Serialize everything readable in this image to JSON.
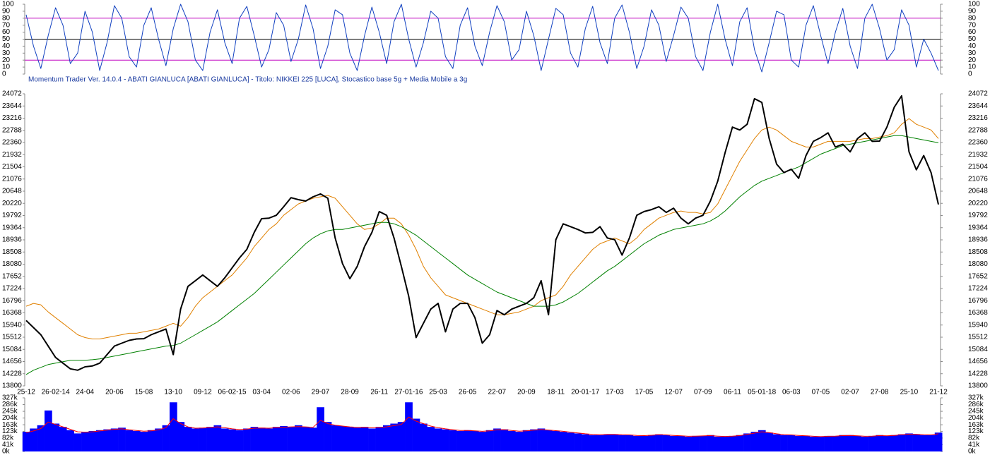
{
  "caption": "Momentum Trader   Ver. 14.0.4  -  ABATI GIANLUCA  [ABATI GIANLUCA] - Titolo: NIKKEI 225  [LUCA],    Stocastico base 5g + Media Mobile a 3g",
  "chart_data": [
    {
      "type": "line",
      "ylim": [
        0,
        100
      ],
      "yticks": [
        0,
        10,
        20,
        30,
        40,
        50,
        60,
        70,
        80,
        90,
        100
      ],
      "reference_lines": [
        {
          "value": 20,
          "color": "#c000c0"
        },
        {
          "value": 50,
          "color": "#000000"
        },
        {
          "value": 80,
          "color": "#c000c0"
        }
      ],
      "series": [
        {
          "color": "#1040c0",
          "values": [
            85,
            40,
            8,
            55,
            95,
            70,
            15,
            30,
            90,
            60,
            5,
            45,
            98,
            80,
            25,
            10,
            70,
            95,
            50,
            12,
            65,
            100,
            75,
            20,
            5,
            60,
            92,
            45,
            15,
            80,
            97,
            55,
            10,
            35,
            88,
            70,
            18,
            50,
            99,
            65,
            8,
            40,
            92,
            85,
            30,
            5,
            55,
            96,
            60,
            15,
            75,
            100,
            50,
            10,
            45,
            90,
            80,
            25,
            8,
            70,
            95,
            40,
            12,
            60,
            98,
            75,
            20,
            35,
            90,
            55,
            5,
            50,
            94,
            85,
            30,
            10,
            65,
            97,
            45,
            15,
            80,
            99,
            60,
            8,
            40,
            92,
            70,
            18,
            55,
            96,
            80,
            25,
            5,
            60,
            100,
            50,
            12,
            75,
            95,
            35,
            3,
            45,
            90,
            85,
            20,
            10,
            70,
            98,
            55,
            15,
            60,
            94,
            40,
            8,
            80,
            100,
            65,
            20,
            35,
            92,
            70,
            10,
            50,
            30,
            5
          ]
        }
      ]
    },
    {
      "type": "line",
      "ylim": [
        13800,
        24072
      ],
      "yticks": [
        13800,
        14228,
        14656,
        15084,
        15512,
        15940,
        16368,
        16796,
        17224,
        17652,
        18080,
        18508,
        18936,
        19364,
        19792,
        20220,
        20648,
        21076,
        21504,
        21932,
        22360,
        22788,
        23216,
        23644,
        24072
      ],
      "year_label_color": "#ff0000",
      "categories": [
        "25-12",
        null,
        null,
        null,
        "26-02-14",
        null,
        null,
        null,
        "24-04",
        null,
        null,
        null,
        "20-06",
        null,
        null,
        null,
        "15-08",
        null,
        null,
        null,
        "13-10",
        null,
        null,
        null,
        "09-12",
        null,
        null,
        null,
        "06-02-15",
        null,
        null,
        null,
        "03-04",
        null,
        null,
        null,
        "02-06",
        null,
        null,
        null,
        "29-07",
        null,
        null,
        null,
        "28-09",
        null,
        null,
        null,
        "26-11",
        null,
        null,
        null,
        "27-01-16",
        null,
        null,
        null,
        "25-03",
        null,
        null,
        null,
        "26-05",
        null,
        null,
        null,
        "22-07",
        null,
        null,
        null,
        "20-09",
        null,
        null,
        null,
        "18-11",
        null,
        null,
        null,
        "20-01-17",
        null,
        null,
        null,
        "17-03",
        null,
        null,
        null,
        "17-05",
        null,
        null,
        null,
        "12-07",
        null,
        null,
        null,
        "07-09",
        null,
        null,
        null,
        "06-11",
        null,
        null,
        null,
        "05-01-18",
        null,
        null,
        null,
        "06-03",
        null,
        null,
        null,
        "07-05",
        null,
        null,
        null,
        "02-07",
        null,
        null,
        null,
        "27-08",
        null,
        null,
        null,
        "25-10",
        null,
        null,
        null,
        "21-12"
      ],
      "series": [
        {
          "color": "#e08000",
          "width": 1,
          "values": [
            16600,
            16700,
            16650,
            16400,
            16200,
            16000,
            15800,
            15600,
            15500,
            15450,
            15450,
            15500,
            15550,
            15600,
            15650,
            15650,
            15700,
            15750,
            15800,
            15900,
            16000,
            15900,
            16200,
            16600,
            16900,
            17100,
            17300,
            17500,
            17700,
            18000,
            18300,
            18700,
            19000,
            19300,
            19500,
            19800,
            20000,
            20200,
            20300,
            20400,
            20450,
            20500,
            20400,
            20100,
            19800,
            19500,
            19300,
            19350,
            19500,
            19700,
            19700,
            19500,
            19100,
            18600,
            18000,
            17600,
            17300,
            17000,
            16900,
            16800,
            16700,
            16600,
            16500,
            16400,
            16300,
            16300,
            16350,
            16400,
            16500,
            16600,
            16800,
            16900,
            17000,
            17300,
            17700,
            18000,
            18300,
            18600,
            18800,
            18900,
            19000,
            18900,
            18800,
            19000,
            19300,
            19500,
            19700,
            19800,
            19900,
            19950,
            19900,
            19900,
            19850,
            19900,
            20200,
            20700,
            21200,
            21700,
            22100,
            22500,
            22800,
            22900,
            22800,
            22600,
            22400,
            22300,
            22200,
            22200,
            22300,
            22400,
            22400,
            22400,
            22400,
            22450,
            22500,
            22500,
            22550,
            22600,
            22700,
            23000,
            23200,
            23000,
            22900,
            22800,
            22500
          ]
        },
        {
          "color": "#008000",
          "width": 1,
          "values": [
            14200,
            14350,
            14450,
            14550,
            14600,
            14650,
            14700,
            14700,
            14700,
            14720,
            14750,
            14800,
            14850,
            14900,
            14950,
            15000,
            15050,
            15100,
            15150,
            15200,
            15220,
            15300,
            15450,
            15600,
            15750,
            15900,
            16050,
            16250,
            16450,
            16650,
            16850,
            17050,
            17300,
            17550,
            17800,
            18050,
            18300,
            18550,
            18800,
            19000,
            19150,
            19250,
            19300,
            19300,
            19350,
            19400,
            19450,
            19500,
            19550,
            19550,
            19500,
            19400,
            19250,
            19100,
            18900,
            18700,
            18500,
            18300,
            18100,
            17900,
            17700,
            17550,
            17400,
            17250,
            17100,
            17000,
            16900,
            16800,
            16700,
            16600,
            16600,
            16600,
            16650,
            16750,
            16900,
            17050,
            17250,
            17450,
            17650,
            17850,
            18000,
            18200,
            18400,
            18600,
            18800,
            18950,
            19100,
            19200,
            19300,
            19350,
            19400,
            19450,
            19500,
            19600,
            19750,
            19950,
            20200,
            20450,
            20650,
            20850,
            21000,
            21100,
            21200,
            21300,
            21400,
            21500,
            21650,
            21800,
            21950,
            22050,
            22150,
            22250,
            22300,
            22350,
            22400,
            22450,
            22500,
            22550,
            22600,
            22600,
            22550,
            22500,
            22450,
            22400,
            22350
          ]
        },
        {
          "color": "#000000",
          "width": 2,
          "values": [
            16100,
            15850,
            15600,
            15200,
            14800,
            14600,
            14400,
            14350,
            14470,
            14500,
            14600,
            14900,
            15200,
            15300,
            15400,
            15450,
            15460,
            15600,
            15700,
            15800,
            14900,
            16500,
            17300,
            17500,
            17700,
            17500,
            17300,
            17600,
            17950,
            18300,
            18600,
            19200,
            19680,
            19700,
            19800,
            20100,
            20420,
            20350,
            20300,
            20450,
            20550,
            20400,
            19000,
            18100,
            17570,
            18000,
            18700,
            19200,
            19930,
            19800,
            19000,
            18000,
            16950,
            15500,
            16000,
            16500,
            16700,
            15700,
            16500,
            16700,
            16700,
            16200,
            15300,
            15600,
            16450,
            16300,
            16500,
            16600,
            16700,
            16900,
            17500,
            16300,
            18940,
            19500,
            19400,
            19300,
            19180,
            19200,
            19400,
            19000,
            18940,
            18400,
            19000,
            19800,
            19930,
            20000,
            20100,
            19900,
            20050,
            19700,
            19500,
            19700,
            19800,
            20300,
            21000,
            22000,
            22900,
            22800,
            23000,
            23900,
            23770,
            22500,
            21600,
            21300,
            21420,
            21100,
            21900,
            22400,
            22530,
            22700,
            22200,
            22300,
            22030,
            22500,
            22700,
            22400,
            22410,
            22900,
            23600,
            24000,
            22030,
            21400,
            21900,
            21300,
            20180
          ]
        }
      ]
    },
    {
      "type": "bar",
      "ylim": [
        0,
        327
      ],
      "yticks": [
        {
          "value": 0,
          "label": "0k"
        },
        {
          "value": 41,
          "label": "41k"
        },
        {
          "value": 82,
          "label": "82k"
        },
        {
          "value": 123,
          "label": "123k"
        },
        {
          "value": 163,
          "label": "163k"
        },
        {
          "value": 204,
          "label": "204k"
        },
        {
          "value": 245,
          "label": "245k"
        },
        {
          "value": 286,
          "label": "286k"
        },
        {
          "value": 327,
          "label": "327k"
        }
      ],
      "series": [
        {
          "color": "#0000ff",
          "values": [
            120,
            140,
            160,
            250,
            170,
            150,
            130,
            110,
            120,
            125,
            130,
            135,
            140,
            145,
            130,
            125,
            120,
            130,
            140,
            160,
            300,
            180,
            150,
            140,
            145,
            150,
            160,
            140,
            135,
            130,
            140,
            150,
            145,
            140,
            150,
            155,
            150,
            160,
            150,
            145,
            270,
            180,
            160,
            155,
            150,
            145,
            150,
            140,
            150,
            160,
            170,
            180,
            300,
            200,
            170,
            150,
            140,
            135,
            130,
            125,
            130,
            125,
            120,
            130,
            140,
            135,
            125,
            120,
            130,
            135,
            140,
            130,
            125,
            120,
            115,
            110,
            105,
            100,
            100,
            105,
            105,
            100,
            100,
            95,
            95,
            100,
            105,
            100,
            95,
            95,
            90,
            95,
            95,
            100,
            90,
            90,
            95,
            100,
            110,
            120,
            130,
            115,
            105,
            100,
            100,
            95,
            95,
            90,
            90,
            95,
            95,
            100,
            100,
            95,
            90,
            95,
            100,
            95,
            100,
            105,
            110,
            105,
            100,
            100,
            115
          ]
        },
        {
          "type": "line",
          "color": "#ff0000",
          "values": [
            115,
            125,
            140,
            180,
            165,
            150,
            135,
            120,
            118,
            120,
            125,
            130,
            135,
            138,
            132,
            128,
            124,
            126,
            132,
            145,
            200,
            170,
            150,
            142,
            143,
            146,
            150,
            145,
            138,
            134,
            137,
            142,
            143,
            142,
            145,
            148,
            150,
            152,
            150,
            147,
            190,
            170,
            160,
            155,
            150,
            147,
            148,
            144,
            146,
            150,
            158,
            165,
            210,
            185,
            170,
            155,
            145,
            138,
            133,
            128,
            128,
            126,
            123,
            126,
            132,
            133,
            128,
            124,
            126,
            130,
            134,
            131,
            127,
            123,
            118,
            113,
            108,
            104,
            102,
            104,
            104,
            102,
            101,
            98,
            97,
            99,
            102,
            101,
            98,
            96,
            93,
            94,
            95,
            97,
            94,
            92,
            94,
            97,
            104,
            112,
            120,
            115,
            108,
            103,
            101,
            98,
            96,
            93,
            91,
            93,
            94,
            97,
            98,
            96,
            93,
            94,
            97,
            96,
            98,
            102,
            106,
            105,
            102,
            101,
            108
          ]
        }
      ]
    }
  ]
}
